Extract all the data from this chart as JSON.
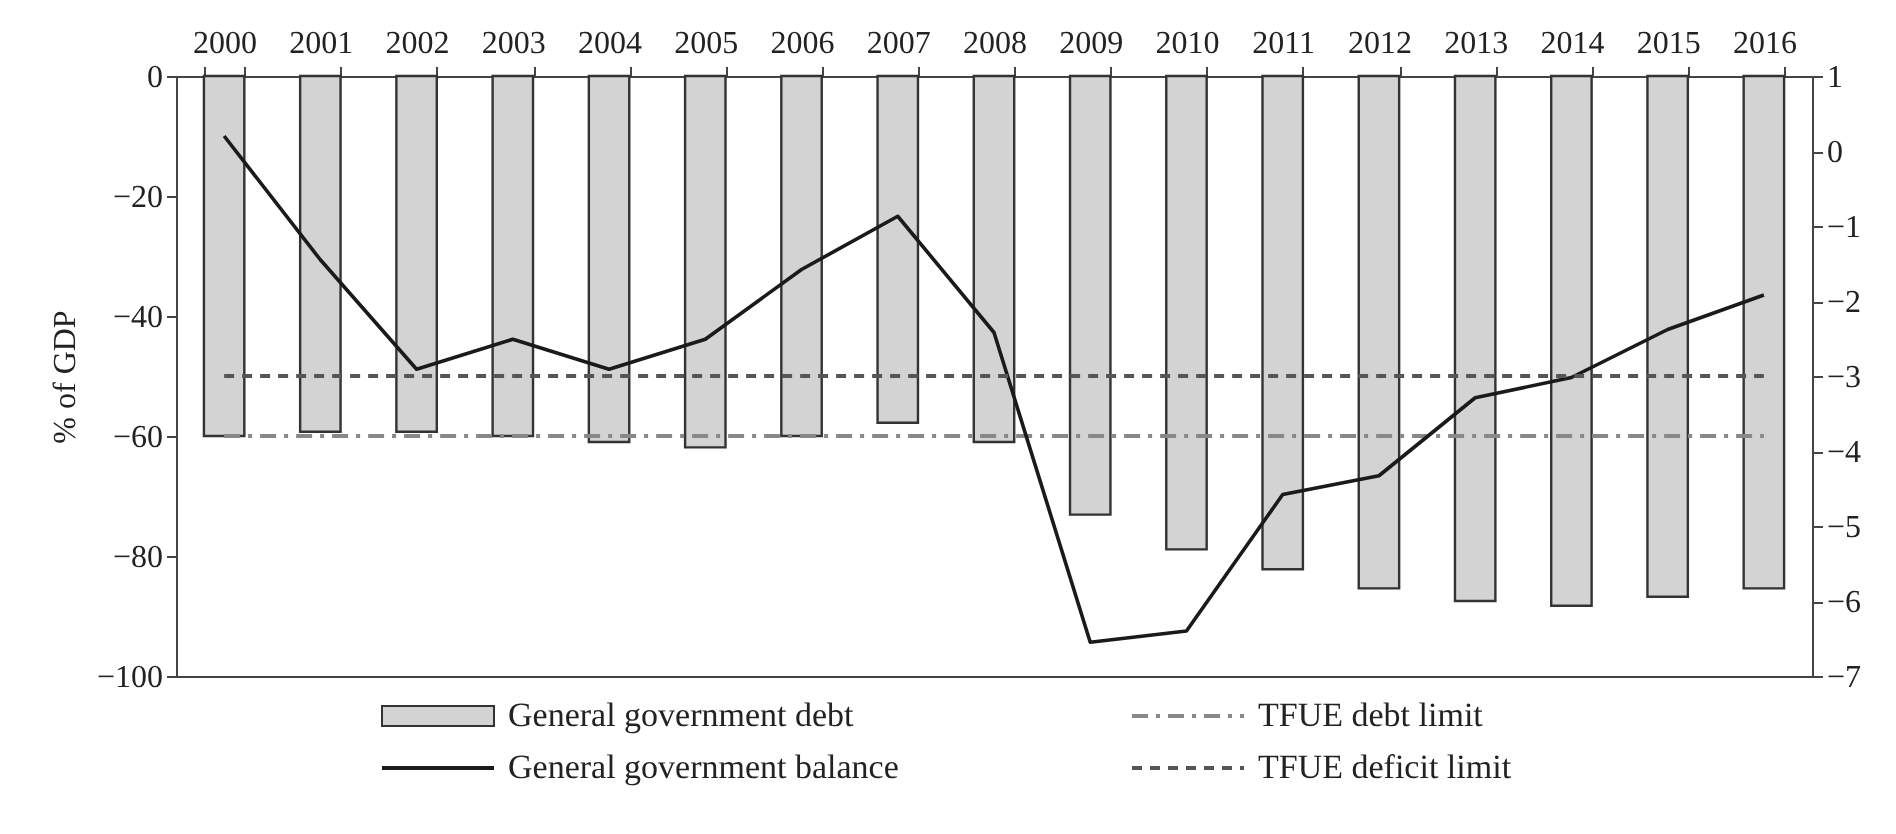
{
  "chart_data": {
    "type": "bar",
    "categories": [
      "2000",
      "2001",
      "2002",
      "2003",
      "2004",
      "2005",
      "2006",
      "2007",
      "2008",
      "2009",
      "2010",
      "2011",
      "2012",
      "2013",
      "2014",
      "2015",
      "2016"
    ],
    "series": [
      {
        "name": "General government debt",
        "color": "#d3d3d3",
        "values": [
          -60,
          -59.3,
          -59.3,
          -60,
          -61,
          -61.9,
          -60,
          -57.8,
          -61,
          -73.1,
          -78.9,
          -82.2,
          -85.4,
          -87.5,
          -88.3,
          -86.8,
          -85.4
        ]
      },
      {
        "name": "General government balance",
        "type": "line",
        "axis": "y2",
        "color": "#1a1a1a",
        "values": [
          0.2,
          -1.45,
          -2.91,
          -2.51,
          -2.91,
          -2.51,
          -1.58,
          -0.87,
          -2.42,
          -6.55,
          -6.4,
          -4.58,
          -4.33,
          -3.29,
          -3.02,
          -2.38,
          -1.92
        ]
      }
    ],
    "ylabel": "% of GDP",
    "ylim": [
      -100,
      0
    ],
    "yticks": [
      -100,
      -80,
      -60,
      -40,
      -20,
      0
    ],
    "y2lim": [
      -7,
      1
    ],
    "y2ticks": [
      -7,
      -6,
      -5,
      -4,
      -3,
      -2,
      -1,
      0,
      1
    ],
    "ref_lines": [
      {
        "axis": "y",
        "value": -60,
        "label": "TFUE debt limit",
        "color": "#888888",
        "line_style": "dashdot"
      },
      {
        "axis": "y2",
        "value": -3,
        "label": "TFUE deficit limit",
        "color": "#555555",
        "line_style": "dashed"
      }
    ],
    "legend": "bottom"
  }
}
